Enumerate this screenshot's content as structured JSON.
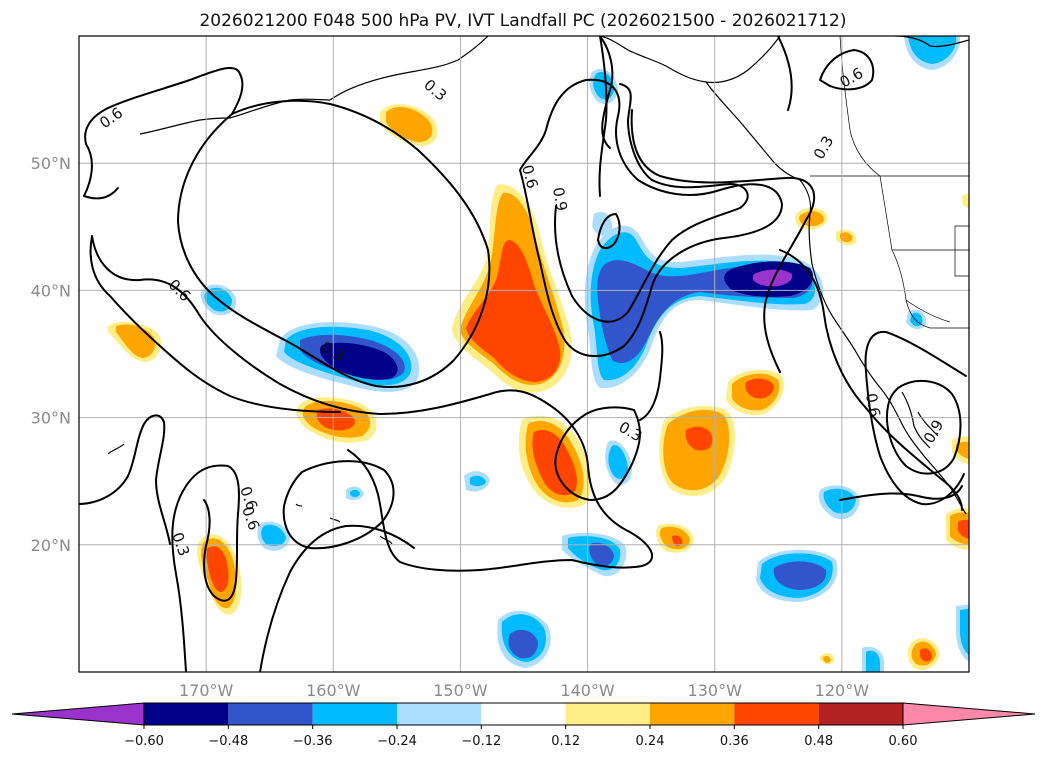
{
  "map": {
    "title": "2026021200 F048 500 hPa PV, IVT Landfall PC (2026021500 - 2026021712)",
    "extent": {
      "lon_min": -180,
      "lon_max": -110,
      "lat_min": 10,
      "lat_max": 60
    },
    "lat_ticks": [
      {
        "value": 20,
        "label": "20°N"
      },
      {
        "value": 30,
        "label": "30°N"
      },
      {
        "value": 40,
        "label": "40°N"
      },
      {
        "value": 50,
        "label": "50°N"
      }
    ],
    "lon_ticks": [
      {
        "value": -170,
        "label": "170°W"
      },
      {
        "value": -160,
        "label": "160°W"
      },
      {
        "value": -150,
        "label": "150°W"
      },
      {
        "value": -140,
        "label": "140°W"
      },
      {
        "value": -130,
        "label": "130°W"
      },
      {
        "value": -120,
        "label": "120°W"
      }
    ],
    "gridlines": true,
    "contour_labels": [
      "0.6",
      "0.3",
      "0.6",
      "0.9",
      "0.3",
      "0.6",
      "0.6",
      "0.3",
      "0.3",
      "0.6",
      "0.6",
      "0.3",
      "0.6",
      "0.9"
    ]
  },
  "colorbar": {
    "extend": "both",
    "levels": [
      -0.72,
      -0.6,
      -0.48,
      -0.36,
      -0.24,
      -0.12,
      0.12,
      0.24,
      0.36,
      0.48,
      0.6,
      0.72
    ],
    "colors": [
      "#9933cc",
      "#000088",
      "#3355cc",
      "#00bbff",
      "#aaddff",
      "#ffffff",
      "#ffee88",
      "#ffa500",
      "#ff4500",
      "#b22222",
      "#ff88aa"
    ],
    "tick_labels": [
      "−0.60",
      "−0.48",
      "−0.36",
      "−0.24",
      "−0.12",
      "0.12",
      "0.24",
      "0.36",
      "0.48",
      "0.60"
    ]
  },
  "colors": {
    "gridline": "#b0b0b0",
    "contour": "#000000",
    "tick_label": "#8a8a8a"
  }
}
